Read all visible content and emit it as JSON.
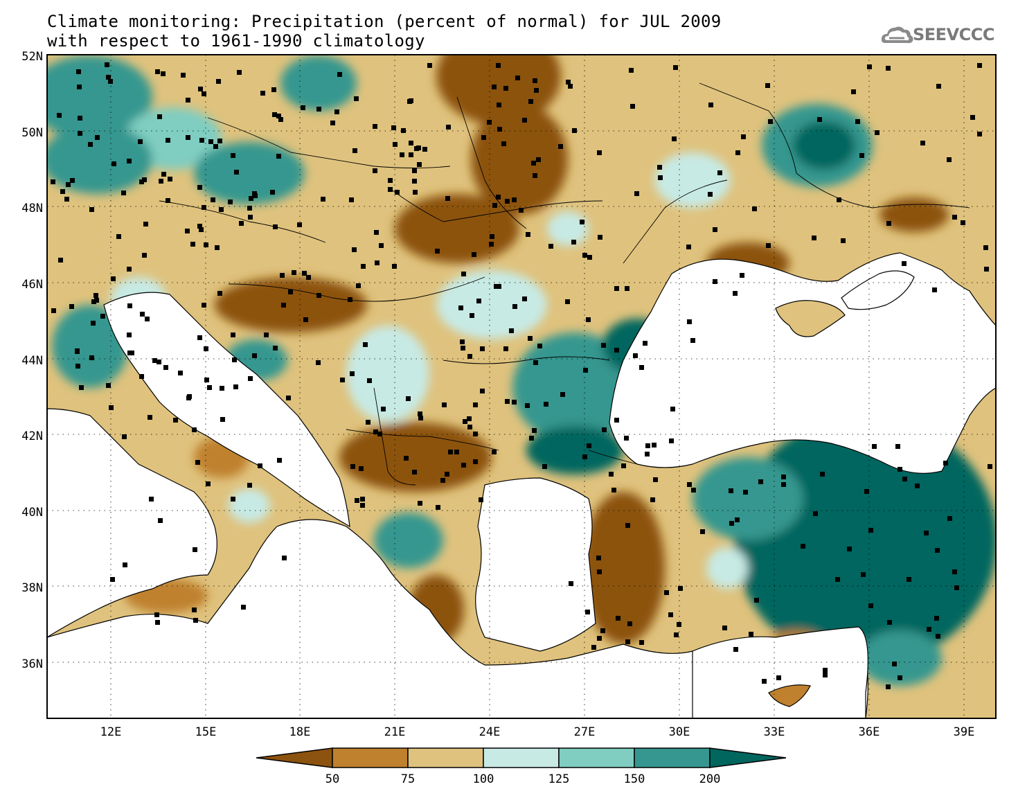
{
  "title": {
    "line1": "Climate monitoring: Precipitation (percent of normal) for JUL 2009",
    "line2": "with respect to 1961-1990 climatology"
  },
  "logo": {
    "text": "SEEVCCC"
  },
  "axes": {
    "lat_labels": [
      "52N",
      "50N",
      "48N",
      "46N",
      "44N",
      "42N",
      "40N",
      "38N",
      "36N"
    ],
    "lon_labels": [
      "12E",
      "15E",
      "18E",
      "21E",
      "24E",
      "27E",
      "30E",
      "33E",
      "36E",
      "39E"
    ]
  },
  "legend": {
    "ticks": [
      "50",
      "75",
      "100",
      "125",
      "150",
      "200"
    ],
    "colors": [
      "#8c520f",
      "#bf812d",
      "#dfc27d",
      "#c7eae5",
      "#80cdc1",
      "#35978f",
      "#01665e"
    ]
  }
}
